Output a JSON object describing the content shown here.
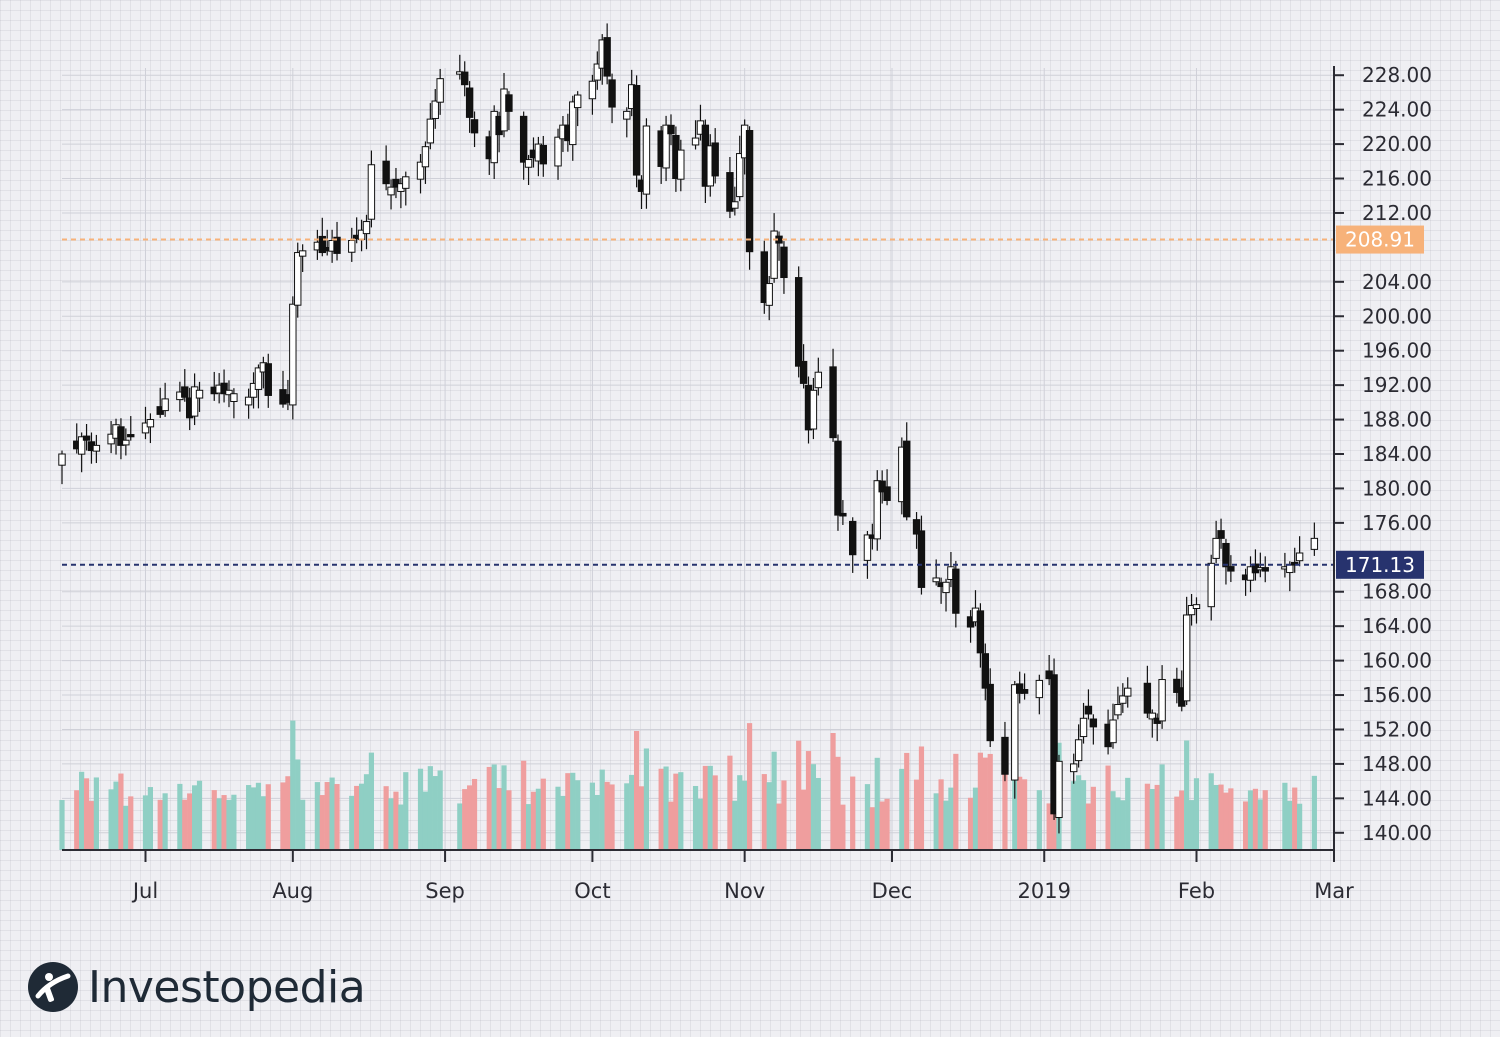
{
  "chart_data": {
    "type": "candlestick",
    "ylim": [
      138,
      230
    ],
    "y_ticks": [
      140,
      144,
      148,
      152,
      156,
      160,
      164,
      168,
      176,
      180,
      184,
      188,
      192,
      196,
      200,
      204,
      212,
      216,
      220,
      224,
      228
    ],
    "y_tick_labels": [
      "140.00",
      "144.00",
      "148.00",
      "152.00",
      "156.00",
      "160.00",
      "164.00",
      "168.00",
      "176.00",
      "180.00",
      "184.00",
      "188.00",
      "192.00",
      "196.00",
      "200.00",
      "204.00",
      "212.00",
      "216.00",
      "220.00",
      "224.00",
      "228.00"
    ],
    "x_ticks": [
      {
        "label": "Jul",
        "date": "2018-07-02"
      },
      {
        "label": "Aug",
        "date": "2018-08-01"
      },
      {
        "label": "Sep",
        "date": "2018-09-01"
      },
      {
        "label": "Oct",
        "date": "2018-10-01"
      },
      {
        "label": "Nov",
        "date": "2018-11-01"
      },
      {
        "label": "Dec",
        "date": "2018-12-01"
      },
      {
        "label": "2019",
        "date": "2019-01-01"
      },
      {
        "label": "Feb",
        "date": "2019-02-01"
      },
      {
        "label": "Mar",
        "date": "2019-03-01"
      }
    ],
    "x_range": [
      "2018-06-15",
      "2019-03-01"
    ],
    "horizontal_lines": [
      {
        "value": 208.91,
        "label": "208.91",
        "color": "#f7b27a"
      },
      {
        "value": 171.13,
        "label": "171.13",
        "color": "#27336e"
      }
    ],
    "up_color": "#ffffff",
    "down_color": "#111111",
    "volume_up_color": "#8fcfc4",
    "volume_down_color": "#ef9e9e",
    "ohlc_closes": [
      [
        "2018-06-15",
        184.0
      ],
      [
        "2018-06-18",
        184.6
      ],
      [
        "2018-06-19",
        186.0
      ],
      [
        "2018-06-20",
        185.6
      ],
      [
        "2018-06-21",
        184.4
      ],
      [
        "2018-06-22",
        185.0
      ],
      [
        "2018-06-25",
        186.3
      ],
      [
        "2018-06-26",
        187.4
      ],
      [
        "2018-06-27",
        185.0
      ],
      [
        "2018-06-28",
        185.6
      ],
      [
        "2018-06-29",
        186.0
      ],
      [
        "2018-07-02",
        187.6
      ],
      [
        "2018-07-03",
        188.0
      ],
      [
        "2018-07-05",
        188.6
      ],
      [
        "2018-07-06",
        190.4
      ],
      [
        "2018-07-09",
        191.2
      ],
      [
        "2018-07-10",
        190.6
      ],
      [
        "2018-07-11",
        188.2
      ],
      [
        "2018-07-12",
        191.8
      ],
      [
        "2018-07-13",
        191.4
      ],
      [
        "2018-07-16",
        191.0
      ],
      [
        "2018-07-17",
        192.0
      ],
      [
        "2018-07-18",
        191.0
      ],
      [
        "2018-07-19",
        191.4
      ],
      [
        "2018-07-20",
        191.0
      ],
      [
        "2018-07-23",
        190.6
      ],
      [
        "2018-07-24",
        192.2
      ],
      [
        "2018-07-25",
        194.0
      ],
      [
        "2018-07-26",
        194.6
      ],
      [
        "2018-07-27",
        190.8
      ],
      [
        "2018-07-30",
        189.8
      ],
      [
        "2018-07-31",
        190.0
      ],
      [
        "2018-08-01",
        201.4
      ],
      [
        "2018-08-02",
        207.4
      ],
      [
        "2018-08-03",
        207.6
      ],
      [
        "2018-08-06",
        208.6
      ],
      [
        "2018-08-07",
        207.4
      ],
      [
        "2018-08-08",
        207.6
      ],
      [
        "2018-08-09",
        208.8
      ],
      [
        "2018-08-10",
        207.3
      ],
      [
        "2018-08-13",
        208.8
      ],
      [
        "2018-08-14",
        209.0
      ],
      [
        "2018-08-15",
        210.0
      ],
      [
        "2018-08-16",
        211.0
      ],
      [
        "2018-08-17",
        217.6
      ],
      [
        "2018-08-20",
        215.4
      ],
      [
        "2018-08-21",
        215.0
      ],
      [
        "2018-08-22",
        215.0
      ],
      [
        "2018-08-23",
        215.4
      ],
      [
        "2018-08-24",
        216.2
      ],
      [
        "2018-08-27",
        217.9
      ],
      [
        "2018-08-28",
        219.7
      ],
      [
        "2018-08-29",
        222.9
      ],
      [
        "2018-08-30",
        225.0
      ],
      [
        "2018-08-31",
        227.6
      ],
      [
        "2018-09-04",
        228.4
      ],
      [
        "2018-09-05",
        226.9
      ],
      [
        "2018-09-06",
        223.1
      ],
      [
        "2018-09-07",
        221.3
      ],
      [
        "2018-09-10",
        218.3
      ],
      [
        "2018-09-11",
        223.8
      ],
      [
        "2018-09-12",
        221.1
      ],
      [
        "2018-09-13",
        226.4
      ],
      [
        "2018-09-14",
        223.8
      ],
      [
        "2018-09-17",
        217.9
      ],
      [
        "2018-09-18",
        218.2
      ],
      [
        "2018-09-19",
        218.4
      ],
      [
        "2018-09-20",
        220.0
      ],
      [
        "2018-09-21",
        217.7
      ],
      [
        "2018-09-24",
        220.8
      ],
      [
        "2018-09-25",
        222.2
      ],
      [
        "2018-09-26",
        220.4
      ],
      [
        "2018-09-27",
        224.9
      ],
      [
        "2018-09-28",
        225.7
      ],
      [
        "2018-10-01",
        227.3
      ],
      [
        "2018-10-02",
        229.3
      ],
      [
        "2018-10-03",
        232.1
      ],
      [
        "2018-10-04",
        227.9
      ],
      [
        "2018-10-05",
        224.3
      ],
      [
        "2018-10-08",
        223.8
      ],
      [
        "2018-10-09",
        226.9
      ],
      [
        "2018-10-10",
        216.4
      ],
      [
        "2018-10-11",
        214.5
      ],
      [
        "2018-10-12",
        222.1
      ],
      [
        "2018-10-15",
        217.4
      ],
      [
        "2018-10-16",
        222.2
      ],
      [
        "2018-10-17",
        221.2
      ],
      [
        "2018-10-18",
        216.0
      ],
      [
        "2018-10-19",
        219.3
      ],
      [
        "2018-10-22",
        220.7
      ],
      [
        "2018-10-23",
        222.7
      ],
      [
        "2018-10-24",
        215.1
      ],
      [
        "2018-10-25",
        219.8
      ],
      [
        "2018-10-26",
        216.3
      ],
      [
        "2018-10-29",
        212.2
      ],
      [
        "2018-10-30",
        213.3
      ],
      [
        "2018-10-31",
        218.9
      ],
      [
        "2018-11-01",
        222.2
      ],
      [
        "2018-11-02",
        207.5
      ],
      [
        "2018-11-05",
        201.6
      ],
      [
        "2018-11-06",
        203.8
      ],
      [
        "2018-11-07",
        209.9
      ],
      [
        "2018-11-08",
        208.5
      ],
      [
        "2018-11-09",
        204.5
      ],
      [
        "2018-11-12",
        194.2
      ],
      [
        "2018-11-13",
        192.2
      ],
      [
        "2018-11-14",
        186.8
      ],
      [
        "2018-11-15",
        191.4
      ],
      [
        "2018-11-16",
        193.5
      ],
      [
        "2018-11-19",
        185.9
      ],
      [
        "2018-11-20",
        176.9
      ],
      [
        "2018-11-21",
        176.8
      ],
      [
        "2018-11-23",
        172.3
      ],
      [
        "2018-11-26",
        174.6
      ],
      [
        "2018-11-27",
        174.2
      ],
      [
        "2018-11-28",
        180.9
      ],
      [
        "2018-11-29",
        179.6
      ],
      [
        "2018-11-30",
        178.6
      ],
      [
        "2018-12-03",
        184.8
      ],
      [
        "2018-12-04",
        176.7
      ],
      [
        "2018-12-06",
        174.7
      ],
      [
        "2018-12-07",
        168.5
      ],
      [
        "2018-12-10",
        169.6
      ],
      [
        "2018-12-11",
        168.6
      ],
      [
        "2018-12-12",
        169.1
      ],
      [
        "2018-12-13",
        170.9
      ],
      [
        "2018-12-14",
        165.5
      ],
      [
        "2018-12-17",
        163.9
      ],
      [
        "2018-12-18",
        166.1
      ],
      [
        "2018-12-19",
        160.9
      ],
      [
        "2018-12-20",
        156.8
      ],
      [
        "2018-12-21",
        150.7
      ],
      [
        "2018-12-24",
        146.8
      ],
      [
        "2018-12-26",
        157.2
      ],
      [
        "2018-12-27",
        156.2
      ],
      [
        "2018-12-28",
        156.2
      ],
      [
        "2018-12-31",
        157.7
      ],
      [
        "2019-01-02",
        157.9
      ],
      [
        "2019-01-03",
        142.2
      ],
      [
        "2019-01-04",
        148.3
      ],
      [
        "2019-01-07",
        148.0
      ],
      [
        "2019-01-08",
        150.8
      ],
      [
        "2019-01-09",
        153.3
      ],
      [
        "2019-01-10",
        153.8
      ],
      [
        "2019-01-11",
        152.3
      ],
      [
        "2019-01-14",
        150.0
      ],
      [
        "2019-01-15",
        153.1
      ],
      [
        "2019-01-16",
        154.9
      ],
      [
        "2019-01-17",
        155.9
      ],
      [
        "2019-01-18",
        156.8
      ],
      [
        "2019-01-22",
        153.9
      ],
      [
        "2019-01-23",
        153.9
      ],
      [
        "2019-01-24",
        152.7
      ],
      [
        "2019-01-25",
        157.8
      ],
      [
        "2019-01-28",
        156.3
      ],
      [
        "2019-01-29",
        154.7
      ],
      [
        "2019-01-30",
        165.3
      ],
      [
        "2019-01-31",
        166.4
      ],
      [
        "2019-02-01",
        166.5
      ],
      [
        "2019-02-04",
        171.3
      ],
      [
        "2019-02-05",
        174.2
      ],
      [
        "2019-02-06",
        174.2
      ],
      [
        "2019-02-07",
        170.9
      ],
      [
        "2019-02-08",
        170.4
      ],
      [
        "2019-02-11",
        169.4
      ],
      [
        "2019-02-12",
        170.9
      ],
      [
        "2019-02-13",
        170.2
      ],
      [
        "2019-02-14",
        170.8
      ],
      [
        "2019-02-15",
        170.4
      ],
      [
        "2019-02-19",
        170.9
      ],
      [
        "2019-02-20",
        171.1
      ],
      [
        "2019-02-21",
        171.1
      ],
      [
        "2019-02-22",
        172.5
      ],
      [
        "2019-02-25",
        174.2
      ]
    ]
  },
  "brand": {
    "name": "Investopedia",
    "dark_color": "#1f2a36",
    "accent_color": "#1f2a36"
  }
}
